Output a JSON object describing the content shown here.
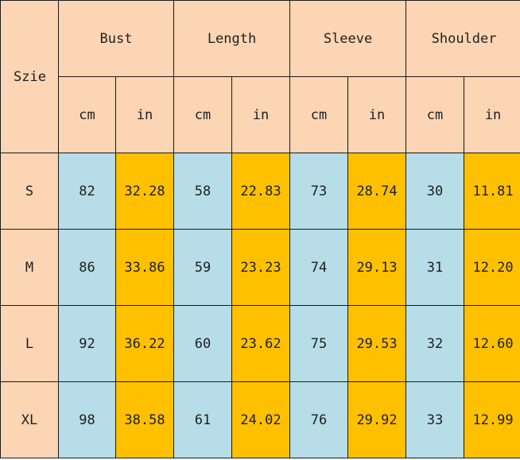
{
  "table": {
    "corner_label": "Szie",
    "groups": [
      "Bust",
      "Length",
      "Sleeve",
      "Shoulder"
    ],
    "units": [
      "cm",
      "in"
    ],
    "rows": [
      {
        "size": "S",
        "values": [
          "82",
          "32.28",
          "58",
          "22.83",
          "73",
          "28.74",
          "30",
          "11.81"
        ]
      },
      {
        "size": "M",
        "values": [
          "86",
          "33.86",
          "59",
          "23.23",
          "74",
          "29.13",
          "31",
          "12.20"
        ]
      },
      {
        "size": "L",
        "values": [
          "92",
          "36.22",
          "60",
          "23.62",
          "75",
          "29.53",
          "32",
          "12.60"
        ]
      },
      {
        "size": "XL",
        "values": [
          "98",
          "38.58",
          "61",
          "24.02",
          "76",
          "29.92",
          "33",
          "12.99"
        ]
      }
    ],
    "colors": {
      "header_bg": "#fcd5b4",
      "cm_bg": "#b6dde8",
      "in_bg": "#ffc000",
      "border": "#1a1a1a"
    }
  }
}
